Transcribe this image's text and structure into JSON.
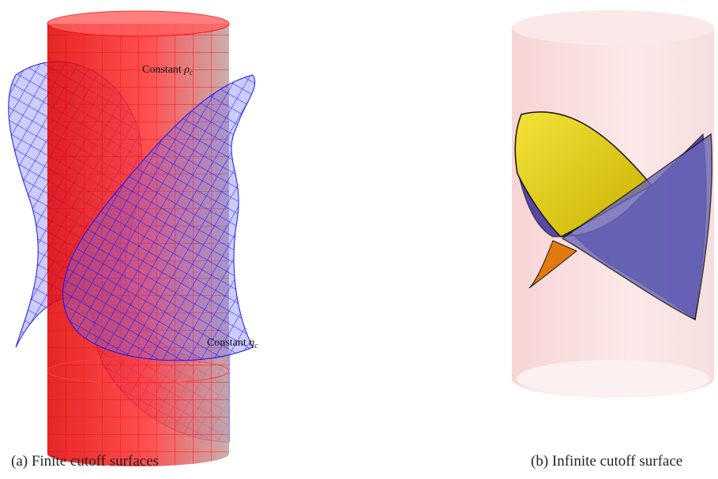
{
  "annotations": [
    {
      "text": "Constant",
      "symbol": "ρ",
      "subscript": "c"
    },
    {
      "text": "Constant",
      "symbol": "η",
      "subscript": "c"
    }
  ],
  "captions": [
    "(a) Finite cutoff surfaces",
    "(b) Infinite cutoff surface"
  ]
}
